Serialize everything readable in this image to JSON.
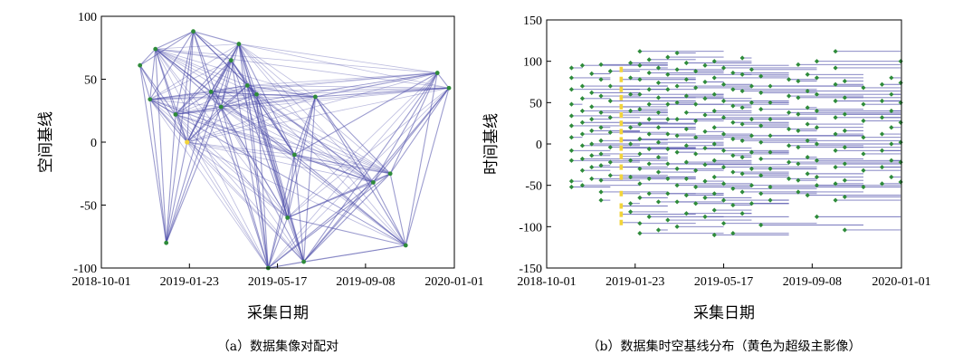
{
  "chart_data": [
    {
      "type": "network-scatter",
      "caption": "（a）数据集像对配对",
      "xlabel": "采集日期",
      "ylabel": "空间基线",
      "xlim": [
        "2018-10-01",
        "2020-01-01"
      ],
      "ylim": [
        -100,
        100
      ],
      "x_ticks": [
        "2018-10-01",
        "2019-01-23",
        "2019-05-17",
        "2019-09-08",
        "2020-01-01"
      ],
      "y_ticks": [
        100,
        50,
        0,
        -50,
        -100
      ],
      "colors": {
        "edge": "#4b4ba8",
        "node": "#2e8b3a",
        "super": "#f2d43a"
      },
      "nodes": [
        {
          "date": "2018-11-20",
          "y": 61
        },
        {
          "date": "2018-12-03",
          "y": 34
        },
        {
          "date": "2018-12-10",
          "y": 74
        },
        {
          "date": "2018-12-24",
          "y": -80
        },
        {
          "date": "2019-01-05",
          "y": 22
        },
        {
          "date": "2019-01-20",
          "y": 0
        },
        {
          "date": "2019-01-28",
          "y": 88
        },
        {
          "date": "2019-02-20",
          "y": 40
        },
        {
          "date": "2019-03-05",
          "y": 28
        },
        {
          "date": "2019-03-18",
          "y": 65
        },
        {
          "date": "2019-03-28",
          "y": 78
        },
        {
          "date": "2019-04-08",
          "y": 45
        },
        {
          "date": "2019-04-20",
          "y": 38
        },
        {
          "date": "2019-05-05",
          "y": -100
        },
        {
          "date": "2019-05-30",
          "y": -60
        },
        {
          "date": "2019-06-08",
          "y": -10
        },
        {
          "date": "2019-06-20",
          "y": -95
        },
        {
          "date": "2019-07-05",
          "y": 36
        },
        {
          "date": "2019-09-18",
          "y": -32
        },
        {
          "date": "2019-10-10",
          "y": -25
        },
        {
          "date": "2019-10-30",
          "y": -82
        },
        {
          "date": "2019-12-10",
          "y": 55
        },
        {
          "date": "2019-12-25",
          "y": 43
        }
      ],
      "super_node_index": 5
    },
    {
      "type": "baseline-scatter",
      "caption": "（b）数据集时空基线分布（黄色为超级主影像）",
      "xlabel": "采集日期",
      "ylabel": "时间基线",
      "xlim": [
        "2018-10-01",
        "2020-01-01"
      ],
      "ylim": [
        -150,
        150
      ],
      "x_ticks": [
        "2018-10-01",
        "2019-01-23",
        "2019-05-17",
        "2019-09-08",
        "2020-01-01"
      ],
      "y_ticks": [
        150,
        100,
        50,
        0,
        -50,
        -100,
        -150
      ],
      "colors": {
        "edge": "#4b4ba8",
        "node": "#2e8b3a",
        "super": "#f2d43a"
      },
      "super_date": "2019-01-05",
      "acquisition_dates": [
        "2018-11-02",
        "2018-11-16",
        "2018-11-28",
        "2018-12-10",
        "2018-12-22",
        "2019-01-05",
        "2019-01-17",
        "2019-01-29",
        "2019-02-10",
        "2019-02-22",
        "2019-03-06",
        "2019-03-18",
        "2019-03-30",
        "2019-04-11",
        "2019-04-23",
        "2019-05-05",
        "2019-05-17",
        "2019-05-29",
        "2019-06-10",
        "2019-06-22",
        "2019-07-04",
        "2019-07-16",
        "2019-08-09",
        "2019-08-21",
        "2019-09-02",
        "2019-09-14",
        "2019-10-08",
        "2019-10-20",
        "2019-11-13",
        "2019-12-07",
        "2019-12-19",
        "2019-12-31"
      ],
      "points": [
        {
          "date": "2018-11-02",
          "ys": [
            92,
            80,
            66,
            48,
            34,
            22,
            8,
            -8,
            -20,
            -45,
            -52
          ]
        },
        {
          "date": "2018-11-16",
          "ys": [
            95,
            70,
            55,
            40,
            26,
            12,
            -2,
            -18,
            -32,
            -50
          ]
        },
        {
          "date": "2018-11-28",
          "ys": [
            85,
            62,
            45,
            30,
            16,
            0,
            -14,
            -28,
            -42
          ]
        },
        {
          "date": "2018-12-10",
          "ys": [
            96,
            78,
            58,
            38,
            20,
            4,
            -12,
            -26,
            -44,
            -58,
            -68
          ]
        },
        {
          "date": "2018-12-22",
          "ys": [
            88,
            70,
            52,
            32,
            14,
            -4,
            -22,
            -38
          ]
        },
        {
          "date": "2019-01-05",
          "ys": [
            90,
            78,
            66,
            56,
            45,
            35,
            25,
            15,
            5,
            -5,
            -15,
            -28,
            -40,
            -60,
            -75,
            -85,
            -95
          ]
        },
        {
          "date": "2019-01-17",
          "ys": [
            98,
            80,
            60,
            40,
            20,
            0,
            -20,
            -40,
            -72,
            -82
          ]
        },
        {
          "date": "2019-01-29",
          "ys": [
            112,
            95,
            78,
            60,
            42,
            24,
            6,
            -12,
            -30,
            -48,
            -65,
            -96,
            -108
          ]
        },
        {
          "date": "2019-02-10",
          "ys": [
            102,
            86,
            66,
            48,
            30,
            12,
            -6,
            -24,
            -42,
            -60,
            -88
          ]
        },
        {
          "date": "2019-02-22",
          "ys": [
            92,
            74,
            56,
            38,
            20,
            2,
            -16,
            -34,
            -70,
            -104
          ]
        },
        {
          "date": "2019-03-06",
          "ys": [
            105,
            84,
            66,
            48,
            30,
            12,
            -6,
            -24,
            -42,
            -60,
            -92
          ]
        },
        {
          "date": "2019-03-18",
          "ys": [
            110,
            90,
            70,
            50,
            30,
            10,
            -10,
            -30,
            -50,
            -70,
            -100
          ]
        },
        {
          "date": "2019-03-30",
          "ys": [
            98,
            78,
            58,
            38,
            18,
            -2,
            -22,
            -42,
            -62,
            -84
          ]
        },
        {
          "date": "2019-04-11",
          "ys": [
            88,
            68,
            48,
            28,
            8,
            -12,
            -32,
            -52,
            -72
          ]
        },
        {
          "date": "2019-04-23",
          "ys": [
            95,
            75,
            55,
            35,
            15,
            -5,
            -25,
            -45,
            -65,
            -88
          ]
        },
        {
          "date": "2019-05-05",
          "ys": [
            100,
            80,
            60,
            40,
            20,
            0,
            -20,
            -40,
            -60,
            -80,
            -110
          ]
        },
        {
          "date": "2019-05-17",
          "ys": [
            92,
            72,
            52,
            32,
            12,
            -8,
            -28,
            -48,
            -68,
            -96
          ]
        },
        {
          "date": "2019-05-29",
          "ys": [
            86,
            66,
            46,
            26,
            6,
            -14,
            -34,
            -54,
            -74,
            -108
          ]
        },
        {
          "date": "2019-06-10",
          "ys": [
            104,
            84,
            64,
            44,
            24,
            4,
            -16,
            -36,
            -58,
            -84
          ]
        },
        {
          "date": "2019-06-22",
          "ys": [
            90,
            70,
            50,
            30,
            10,
            -10,
            -30,
            -50,
            -72
          ]
        },
        {
          "date": "2019-07-04",
          "ys": [
            82,
            62,
            42,
            22,
            2,
            -18,
            -38,
            -60,
            -98
          ]
        },
        {
          "date": "2019-07-16",
          "ys": [
            70,
            50,
            30,
            10,
            -10,
            -30,
            -52,
            -68
          ]
        },
        {
          "date": "2019-08-09",
          "ys": [
            78,
            58,
            38,
            18,
            -2,
            -22,
            -42
          ]
        },
        {
          "date": "2019-08-21",
          "ys": [
            96,
            76,
            56,
            36,
            16,
            -4,
            -24,
            -44,
            -58
          ]
        },
        {
          "date": "2019-09-02",
          "ys": [
            84,
            64,
            44,
            24,
            4,
            -16,
            -36,
            -62
          ]
        },
        {
          "date": "2019-09-14",
          "ys": [
            100,
            80,
            60,
            40,
            20,
            0,
            -20,
            -40,
            -50,
            -88
          ]
        },
        {
          "date": "2019-10-08",
          "ys": [
            112,
            92,
            72,
            52,
            32,
            12,
            -8,
            -28,
            -48,
            -68
          ]
        },
        {
          "date": "2019-10-20",
          "ys": [
            76,
            56,
            36,
            16,
            -4,
            -24,
            -44,
            -64,
            -104
          ]
        },
        {
          "date": "2019-11-13",
          "ys": [
            68,
            48,
            28,
            8,
            -12,
            -32,
            -52
          ]
        },
        {
          "date": "2019-12-07",
          "ys": [
            72,
            52,
            32,
            12,
            -8,
            -28,
            -48
          ]
        },
        {
          "date": "2019-12-19",
          "ys": [
            80,
            60,
            40,
            20,
            0,
            -20,
            -40
          ]
        },
        {
          "date": "2019-12-31",
          "ys": [
            100,
            74,
            50,
            26,
            2,
            -22,
            -46
          ]
        }
      ]
    }
  ]
}
